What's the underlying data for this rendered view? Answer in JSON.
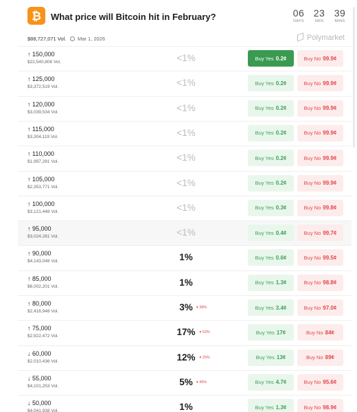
{
  "header": {
    "title": "What price will Bitcoin hit in February?",
    "logo_glyph": "₿",
    "logo_color": "#f7931a",
    "countdown": [
      {
        "value": "06",
        "label": "DAYS"
      },
      {
        "value": "23",
        "label": "HRS"
      },
      {
        "value": "39",
        "label": "MINS"
      }
    ]
  },
  "meta": {
    "volume": "$88,727,071 Vol.",
    "date": "Mar 1, 2026",
    "brand": "Polymarket"
  },
  "labels": {
    "buy_yes": "Buy Yes",
    "buy_no": "Buy No"
  },
  "colors": {
    "yes_green": "#3da35a",
    "no_red": "#e0484d",
    "bitcoin_orange": "#f7931a"
  },
  "markets": [
    {
      "strike": "↑ 150,000",
      "volume": "$22,540,808 Vol.",
      "chance": "<1%",
      "change": "",
      "yes": "0.2¢",
      "no": "99.9¢",
      "yes_selected": true
    },
    {
      "strike": "↑ 125,000",
      "volume": "$3,372,519 Vol.",
      "chance": "<1%",
      "change": "",
      "yes": "0.2¢",
      "no": "99.9¢"
    },
    {
      "strike": "↑ 120,000",
      "volume": "$3,039,534 Vol.",
      "chance": "<1%",
      "change": "",
      "yes": "0.2¢",
      "no": "99.9¢"
    },
    {
      "strike": "↑ 115,000",
      "volume": "$3,304,119 Vol.",
      "chance": "<1%",
      "change": "",
      "yes": "0.2¢",
      "no": "99.9¢"
    },
    {
      "strike": "↑ 110,000",
      "volume": "$1,997,281 Vol.",
      "chance": "<1%",
      "change": "",
      "yes": "0.2¢",
      "no": "99.9¢"
    },
    {
      "strike": "↑ 105,000",
      "volume": "$2,353,771 Vol.",
      "chance": "<1%",
      "change": "",
      "yes": "0.2¢",
      "no": "99.9¢"
    },
    {
      "strike": "↑ 100,000",
      "volume": "$3,121,448 Vol.",
      "chance": "<1%",
      "change": "",
      "yes": "0.3¢",
      "no": "99.8¢"
    },
    {
      "strike": "↑ 95,000",
      "volume": "$3,024,281 Vol.",
      "chance": "<1%",
      "change": "",
      "yes": "0.4¢",
      "no": "99.7¢",
      "shaded": true
    },
    {
      "strike": "↑ 90,000",
      "volume": "$4,143,048 Vol.",
      "chance": "1%",
      "change": "",
      "yes": "0.6¢",
      "no": "99.5¢"
    },
    {
      "strike": "↑ 85,000",
      "volume": "$6,002,201 Vol.",
      "chance": "1%",
      "change": "",
      "yes": "1.3¢",
      "no": "98.8¢"
    },
    {
      "strike": "↑ 80,000",
      "volume": "$2,416,948 Vol.",
      "chance": "3%",
      "change": "▾ 38%",
      "yes": "3.4¢",
      "no": "97.0¢"
    },
    {
      "strike": "↑ 75,000",
      "volume": "$2,922,472 Vol.",
      "chance": "17%",
      "change": "▾ 53%",
      "yes": "17¢",
      "no": "84¢"
    },
    {
      "strike": "↓ 60,000",
      "volume": "$2,010,436 Vol.",
      "chance": "12%",
      "change": "▾ 25%",
      "yes": "13¢",
      "no": "89¢"
    },
    {
      "strike": "↓ 55,000",
      "volume": "$4,101,253 Vol.",
      "chance": "5%",
      "change": "▾ 45%",
      "yes": "4.7¢",
      "no": "95.6¢"
    },
    {
      "strike": "↓ 50,000",
      "volume": "$4,041,938 Vol.",
      "chance": "1%",
      "change": "",
      "yes": "1.3¢",
      "no": "98.9¢"
    }
  ]
}
